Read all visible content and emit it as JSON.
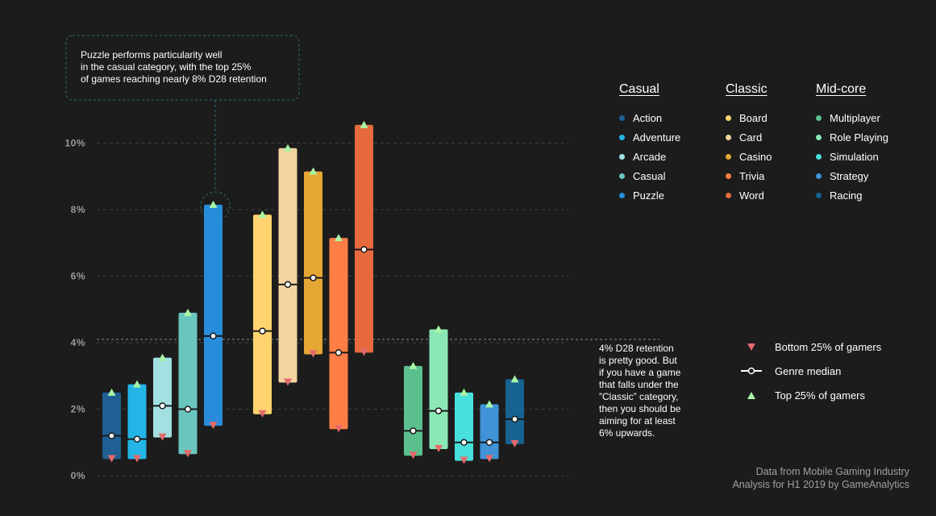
{
  "chart_data": {
    "type": "bar",
    "title": "",
    "xlabel": "",
    "ylabel": "",
    "ylim": [
      0,
      10.5
    ],
    "y_ticks": [
      "0%",
      "2%",
      "4%",
      "6%",
      "8%",
      "10%"
    ],
    "grid": true,
    "reference_line": {
      "value": 4.0
    },
    "groups": [
      {
        "name": "Casual",
        "genres": [
          {
            "name": "Action",
            "color": "#1f5f94",
            "bottom": 0.5,
            "median": 1.2,
            "top": 2.5
          },
          {
            "name": "Adventure",
            "color": "#25b4e6",
            "bottom": 0.5,
            "median": 1.1,
            "top": 2.75
          },
          {
            "name": "Arcade",
            "color": "#a3e0e1",
            "bottom": 1.15,
            "median": 2.1,
            "top": 3.55
          },
          {
            "name": "Casual",
            "color": "#6bc5bf",
            "bottom": 0.65,
            "median": 2.0,
            "top": 4.9
          },
          {
            "name": "Puzzle",
            "color": "#278ddb",
            "bottom": 1.5,
            "median": 4.2,
            "top": 8.15
          }
        ]
      },
      {
        "name": "Classic",
        "genres": [
          {
            "name": "Board",
            "color": "#ffd36e",
            "bottom": 1.85,
            "median": 4.35,
            "top": 7.85
          },
          {
            "name": "Card",
            "color": "#f3d39f",
            "bottom": 2.8,
            "median": 5.75,
            "top": 9.85
          },
          {
            "name": "Casino",
            "color": "#e6a634",
            "bottom": 3.65,
            "median": 5.95,
            "top": 9.15
          },
          {
            "name": "Trivia",
            "color": "#ff7e45",
            "bottom": 1.4,
            "median": 3.7,
            "top": 7.15
          },
          {
            "name": "Word",
            "color": "#e66a3d",
            "bottom": 3.7,
            "median": 6.8,
            "top": 10.55
          }
        ]
      },
      {
        "name": "Mid-core",
        "genres": [
          {
            "name": "Multiplayer",
            "color": "#5bc08e",
            "bottom": 0.6,
            "median": 1.35,
            "top": 3.3
          },
          {
            "name": "Role Playing",
            "color": "#8be8b6",
            "bottom": 0.8,
            "median": 1.95,
            "top": 4.4
          },
          {
            "name": "Simulation",
            "color": "#48e0dc",
            "bottom": 0.45,
            "median": 1.0,
            "top": 2.5
          },
          {
            "name": "Strategy",
            "color": "#3f93d6",
            "bottom": 0.5,
            "median": 1.0,
            "top": 2.15
          },
          {
            "name": "Racing",
            "color": "#166291",
            "bottom": 0.95,
            "median": 1.7,
            "top": 2.9
          }
        ]
      }
    ],
    "key": {
      "bottom": "Bottom 25% of gamers",
      "median": "Genre median",
      "top": "Top 25% of gamers"
    },
    "marker_colors": {
      "bottom": "#e46a6a",
      "top": "#a9f5a5"
    }
  },
  "annotations": {
    "puzzle_lines": [
      "Puzzle performs particularity well",
      "in the casual category, with the top 25%",
      "of games reaching nearly 8% D28 retention"
    ],
    "retention_lines": [
      "4% D28 retention",
      "is pretty good. But",
      "if you have a game",
      "that falls under the",
      "”Classic” category,",
      "then you should be",
      "aiming for at least",
      "6% upwards."
    ]
  },
  "source_lines": [
    "Data from Mobile Gaming Industry",
    "Analysis for H1 2019 by GameAnalytics"
  ]
}
